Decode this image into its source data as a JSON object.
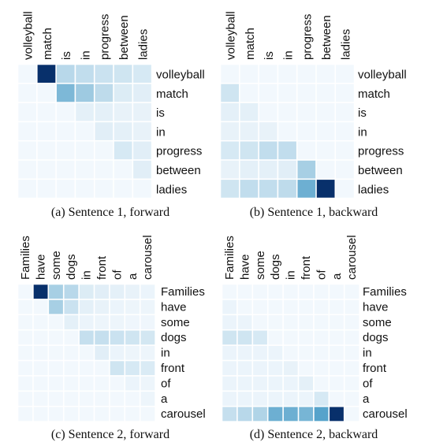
{
  "colors": {
    "low": "#f6fafe",
    "mid": "#9ecae1",
    "high": "#2b8cbe",
    "max": "#08306b",
    "gridline": "#ffffff"
  },
  "chart_data": [
    {
      "type": "heatmap",
      "caption": "(a) Sentence 1, forward",
      "col_labels": [
        "volleyball",
        "match",
        "is",
        "in",
        "progress",
        "between",
        "ladies"
      ],
      "row_labels": [
        "volleyball",
        "match",
        "is",
        "in",
        "progress",
        "between",
        "ladies"
      ],
      "values": [
        [
          0.02,
          1.0,
          0.35,
          0.3,
          0.25,
          0.22,
          0.18
        ],
        [
          0.02,
          0.02,
          0.6,
          0.5,
          0.32,
          0.15,
          0.12
        ],
        [
          0.02,
          0.02,
          0.02,
          0.1,
          0.1,
          0.08,
          0.08
        ],
        [
          0.02,
          0.02,
          0.02,
          0.02,
          0.12,
          0.1,
          0.08
        ],
        [
          0.02,
          0.02,
          0.02,
          0.02,
          0.02,
          0.18,
          0.12
        ],
        [
          0.02,
          0.02,
          0.02,
          0.02,
          0.02,
          0.02,
          0.12
        ],
        [
          0.02,
          0.02,
          0.02,
          0.02,
          0.02,
          0.02,
          0.02
        ]
      ]
    },
    {
      "type": "heatmap",
      "caption": "(b) Sentence 1, backward",
      "col_labels": [
        "volleyball",
        "match",
        "is",
        "in",
        "progress",
        "between",
        "ladies"
      ],
      "row_labels": [
        "volleyball",
        "match",
        "is",
        "in",
        "progress",
        "between",
        "ladies"
      ],
      "values": [
        [
          0.02,
          0.02,
          0.02,
          0.02,
          0.02,
          0.02,
          0.02
        ],
        [
          0.22,
          0.02,
          0.02,
          0.02,
          0.02,
          0.02,
          0.02
        ],
        [
          0.1,
          0.1,
          0.02,
          0.02,
          0.02,
          0.02,
          0.02
        ],
        [
          0.08,
          0.08,
          0.08,
          0.02,
          0.02,
          0.02,
          0.02
        ],
        [
          0.18,
          0.22,
          0.3,
          0.3,
          0.02,
          0.02,
          0.02
        ],
        [
          0.08,
          0.1,
          0.1,
          0.12,
          0.45,
          0.02,
          0.02
        ],
        [
          0.22,
          0.3,
          0.3,
          0.32,
          0.65,
          1.0,
          0.02
        ]
      ]
    },
    {
      "type": "heatmap",
      "caption": "(c) Sentence 2, forward",
      "col_labels": [
        "Families",
        "have",
        "some",
        "dogs",
        "in",
        "front",
        "of",
        "a",
        "carousel"
      ],
      "row_labels": [
        "Families",
        "have",
        "some",
        "dogs",
        "in",
        "front",
        "of",
        "a",
        "carousel"
      ],
      "values": [
        [
          0.02,
          1.0,
          0.45,
          0.35,
          0.15,
          0.12,
          0.1,
          0.08,
          0.06
        ],
        [
          0.02,
          0.02,
          0.45,
          0.25,
          0.1,
          0.08,
          0.06,
          0.05,
          0.05
        ],
        [
          0.02,
          0.02,
          0.02,
          0.1,
          0.06,
          0.05,
          0.05,
          0.04,
          0.04
        ],
        [
          0.02,
          0.02,
          0.02,
          0.02,
          0.28,
          0.28,
          0.25,
          0.22,
          0.2
        ],
        [
          0.02,
          0.02,
          0.02,
          0.02,
          0.02,
          0.12,
          0.06,
          0.05,
          0.05
        ],
        [
          0.02,
          0.02,
          0.02,
          0.02,
          0.02,
          0.02,
          0.22,
          0.18,
          0.16
        ],
        [
          0.02,
          0.02,
          0.02,
          0.02,
          0.02,
          0.02,
          0.02,
          0.06,
          0.05
        ],
        [
          0.02,
          0.02,
          0.02,
          0.02,
          0.02,
          0.02,
          0.02,
          0.02,
          0.05
        ],
        [
          0.02,
          0.02,
          0.02,
          0.02,
          0.02,
          0.02,
          0.02,
          0.02,
          0.02
        ]
      ]
    },
    {
      "type": "heatmap",
      "caption": "(d) Sentence 2, backward",
      "col_labels": [
        "Families",
        "have",
        "some",
        "dogs",
        "in",
        "front",
        "of",
        "a",
        "carousel"
      ],
      "row_labels": [
        "Families",
        "have",
        "some",
        "dogs",
        "in",
        "front",
        "of",
        "a",
        "carousel"
      ],
      "values": [
        [
          0.02,
          0.02,
          0.02,
          0.02,
          0.02,
          0.02,
          0.02,
          0.02,
          0.02
        ],
        [
          0.06,
          0.02,
          0.02,
          0.02,
          0.02,
          0.02,
          0.02,
          0.02,
          0.02
        ],
        [
          0.06,
          0.06,
          0.02,
          0.02,
          0.02,
          0.02,
          0.02,
          0.02,
          0.02
        ],
        [
          0.22,
          0.22,
          0.18,
          0.02,
          0.02,
          0.02,
          0.02,
          0.02,
          0.02
        ],
        [
          0.06,
          0.06,
          0.06,
          0.06,
          0.02,
          0.02,
          0.02,
          0.02,
          0.02
        ],
        [
          0.06,
          0.06,
          0.06,
          0.06,
          0.08,
          0.02,
          0.02,
          0.02,
          0.02
        ],
        [
          0.06,
          0.06,
          0.06,
          0.06,
          0.06,
          0.1,
          0.02,
          0.02,
          0.02
        ],
        [
          0.06,
          0.06,
          0.06,
          0.06,
          0.06,
          0.06,
          0.18,
          0.02,
          0.02
        ],
        [
          0.28,
          0.35,
          0.4,
          0.65,
          0.65,
          0.62,
          0.72,
          1.0,
          0.02
        ]
      ]
    }
  ]
}
